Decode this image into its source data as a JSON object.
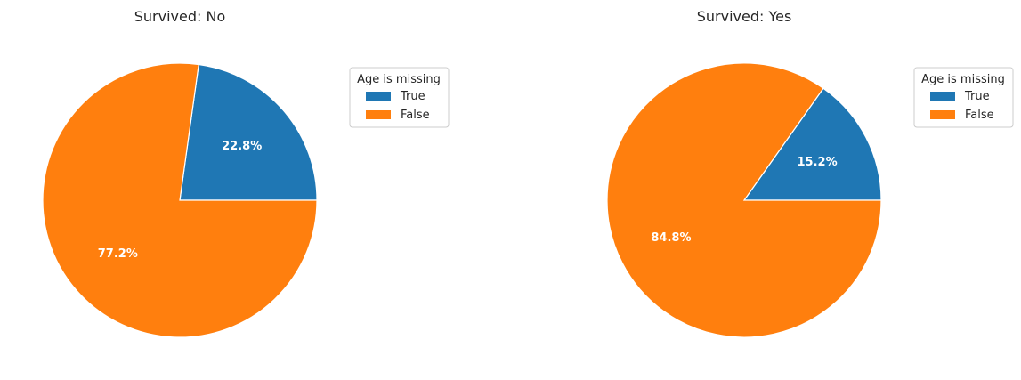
{
  "chart_data": [
    {
      "type": "pie",
      "title": "Survived: No",
      "legend_title": "Age is missing",
      "legend_position": "top-right",
      "labels": [
        "True",
        "False"
      ],
      "values": [
        22.8,
        77.2
      ],
      "value_labels": [
        "22.8%",
        "77.2%"
      ],
      "colors": [
        "#1f77b4",
        "#ff7f0e"
      ]
    },
    {
      "type": "pie",
      "title": "Survived: Yes",
      "legend_title": "Age is missing",
      "legend_position": "top-right",
      "labels": [
        "True",
        "False"
      ],
      "values": [
        15.2,
        84.8
      ],
      "value_labels": [
        "15.2%",
        "84.8%"
      ],
      "colors": [
        "#1f77b4",
        "#ff7f0e"
      ]
    }
  ]
}
